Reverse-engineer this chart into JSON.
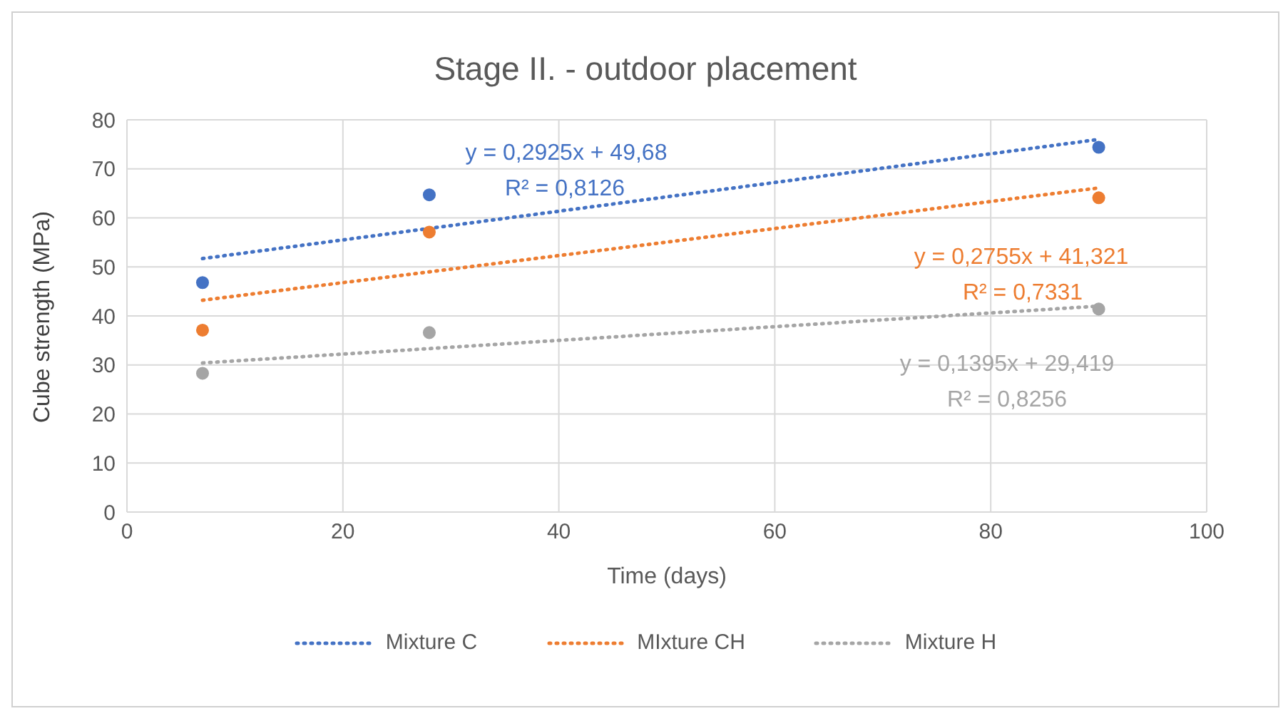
{
  "chart_data": {
    "type": "scatter",
    "title": "Stage II. - outdoor placement",
    "xlabel": "Time (days)",
    "ylabel": "Cube strength (MPa)",
    "xlim": [
      0,
      100
    ],
    "xticks": [
      0,
      20,
      40,
      60,
      80,
      100
    ],
    "ylim": [
      0,
      80
    ],
    "yticks": [
      0,
      10,
      20,
      30,
      40,
      50,
      60,
      70,
      80
    ],
    "grid": true,
    "legend": "bottom",
    "marker": "circle",
    "series": [
      {
        "color": "#4472c4",
        "x": [
          7,
          28,
          90
        ],
        "values": [
          46.8,
          64.7,
          74.4
        ]
      },
      {
        "color": "#ed7d31",
        "x": [
          7,
          28,
          90
        ],
        "values": [
          37.1,
          57.1,
          64.1
        ]
      },
      {
        "color": "#a5a5a5",
        "x": [
          7,
          28,
          90
        ],
        "values": [
          28.3,
          36.6,
          41.4
        ]
      },
      {
        "type": "line",
        "name": "Mixture C",
        "color": "#4472c4",
        "line_style": "dotted",
        "marker": "none",
        "x": [
          7,
          90
        ],
        "values": [
          51.7,
          76.0
        ]
      },
      {
        "type": "line",
        "name": "MIxture CH",
        "color": "#ed7d31",
        "line_style": "dotted",
        "marker": "none",
        "x": [
          7,
          90
        ],
        "values": [
          43.2,
          66.1
        ]
      },
      {
        "type": "line",
        "name": "Mixture H",
        "color": "#a5a5a5",
        "line_style": "dotted",
        "marker": "none",
        "x": [
          7,
          90
        ],
        "values": [
          30.4,
          42.0
        ]
      }
    ],
    "annotations": [
      "y = 0,2925x + 49,68",
      "R² = 0,8126",
      "y = 0,2755x + 41,321",
      "R² = 0,7331",
      "y = 0,1395x + 29,419",
      "R² = 0,8256"
    ]
  }
}
